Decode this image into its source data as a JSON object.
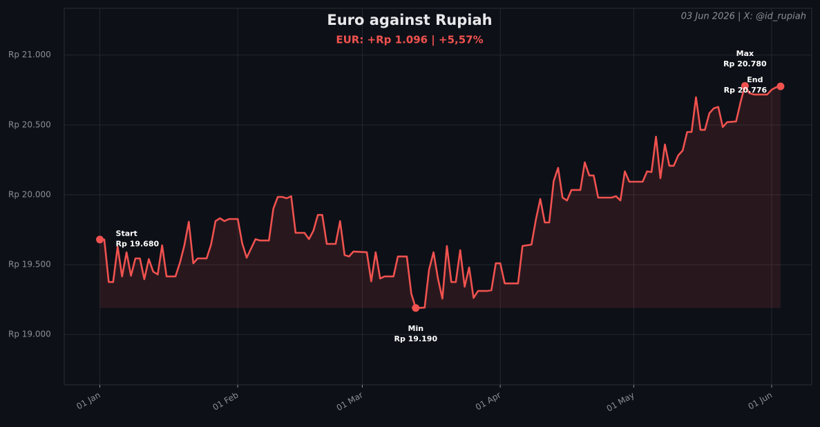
{
  "chart_data": {
    "type": "line",
    "title": "Euro against Rupiah",
    "subtitle": "EUR: +Rp 1.096 | +5,57%",
    "header": "03 Jun 2026 | X: @id_rupiah",
    "color": "#f0524f",
    "grid": true,
    "fill_area": true,
    "x": [
      "2026-01-01",
      "2026-01-02",
      "2026-01-03",
      "2026-01-04",
      "2026-01-05",
      "2026-01-06",
      "2026-01-07",
      "2026-01-08",
      "2026-01-09",
      "2026-01-10",
      "2026-01-11",
      "2026-01-12",
      "2026-01-13",
      "2026-01-14",
      "2026-01-15",
      "2026-01-16",
      "2026-01-18",
      "2026-01-19",
      "2026-01-20",
      "2026-01-21",
      "2026-01-22",
      "2026-01-23",
      "2026-01-25",
      "2026-01-26",
      "2026-01-27",
      "2026-01-28",
      "2026-01-29",
      "2026-01-30",
      "2026-02-01",
      "2026-02-02",
      "2026-02-03",
      "2026-02-05",
      "2026-02-06",
      "2026-02-08",
      "2026-02-09",
      "2026-02-10",
      "2026-02-11",
      "2026-02-12",
      "2026-02-13",
      "2026-02-14",
      "2026-02-16",
      "2026-02-17",
      "2026-02-18",
      "2026-02-19",
      "2026-02-20",
      "2026-02-21",
      "2026-02-23",
      "2026-02-24",
      "2026-02-25",
      "2026-02-26",
      "2026-02-27",
      "2026-03-02",
      "2026-03-03",
      "2026-03-04",
      "2026-03-05",
      "2026-03-06",
      "2026-03-08",
      "2026-03-09",
      "2026-03-11",
      "2026-03-12",
      "2026-03-13",
      "2026-03-15",
      "2026-03-16",
      "2026-03-17",
      "2026-03-18",
      "2026-03-19",
      "2026-03-20",
      "2026-03-21",
      "2026-03-22",
      "2026-03-23",
      "2026-03-24",
      "2026-03-25",
      "2026-03-26",
      "2026-03-27",
      "2026-03-29",
      "2026-03-30",
      "2026-03-31",
      "2026-04-01",
      "2026-04-02",
      "2026-04-05",
      "2026-04-06",
      "2026-04-08",
      "2026-04-09",
      "2026-04-10",
      "2026-04-11",
      "2026-04-12",
      "2026-04-13",
      "2026-04-14",
      "2026-04-15",
      "2026-04-16",
      "2026-04-17",
      "2026-04-19",
      "2026-04-20",
      "2026-04-21",
      "2026-04-22",
      "2026-04-23",
      "2026-04-26",
      "2026-04-27",
      "2026-04-28",
      "2026-04-29",
      "2026-04-30",
      "2026-05-03",
      "2026-05-04",
      "2026-05-05",
      "2026-05-06",
      "2026-05-07",
      "2026-05-08",
      "2026-05-09",
      "2026-05-10",
      "2026-05-11",
      "2026-05-12",
      "2026-05-13",
      "2026-05-14",
      "2026-05-15",
      "2026-05-16",
      "2026-05-17",
      "2026-05-18",
      "2026-05-19",
      "2026-05-20",
      "2026-05-21",
      "2026-05-22",
      "2026-05-24",
      "2026-05-25",
      "2026-05-26",
      "2026-05-27",
      "2026-05-28",
      "2026-05-31",
      "2026-06-01",
      "2026-06-02",
      "2026-06-03"
    ],
    "values": [
      19680,
      19680,
      19376,
      19376,
      19629,
      19416,
      19589,
      19421,
      19545,
      19545,
      19396,
      19540,
      19450,
      19430,
      19639,
      19416,
      19416,
      19515,
      19639,
      19807,
      19510,
      19545,
      19545,
      19644,
      19812,
      19832,
      19812,
      19827,
      19827,
      19653,
      19550,
      19683,
      19673,
      19673,
      19901,
      19985,
      19985,
      19975,
      19990,
      19728,
      19728,
      19683,
      19743,
      19856,
      19856,
      19649,
      19649,
      19812,
      19569,
      19559,
      19594,
      19589,
      19381,
      19589,
      19401,
      19416,
      19416,
      19559,
      19559,
      19292,
      19190,
      19193,
      19465,
      19589,
      19400,
      19257,
      19634,
      19376,
      19376,
      19604,
      19342,
      19480,
      19262,
      19312,
      19312,
      19317,
      19510,
      19510,
      19366,
      19366,
      19634,
      19644,
      19822,
      19970,
      19802,
      19802,
      20099,
      20193,
      19980,
      19960,
      20035,
      20035,
      20233,
      20139,
      20139,
      19980,
      19980,
      19990,
      19960,
      20168,
      20094,
      20094,
      20168,
      20163,
      20416,
      20119,
      20361,
      20208,
      20208,
      20282,
      20317,
      20450,
      20450,
      20698,
      20465,
      20465,
      20584,
      20619,
      20629,
      20485,
      20520,
      20525,
      20663,
      20780,
      20728,
      20718,
      20718,
      20752,
      20770,
      20776
    ],
    "xlim": [
      "2025-12-24",
      "2026-06-10"
    ],
    "xticks": [
      {
        "value": "2026-01-01",
        "label": "01 Jan"
      },
      {
        "value": "2026-02-01",
        "label": "01 Feb"
      },
      {
        "value": "2026-03-01",
        "label": "01 Mar"
      },
      {
        "value": "2026-04-01",
        "label": "01 Apr"
      },
      {
        "value": "2026-05-01",
        "label": "01 May"
      },
      {
        "value": "2026-06-01",
        "label": "01 Jun"
      }
    ],
    "ylim": [
      18640,
      21335
    ],
    "yticks": [
      {
        "value": 19000,
        "label": "Rp 19.000"
      },
      {
        "value": 19500,
        "label": "Rp 19.500"
      },
      {
        "value": 20000,
        "label": "Rp 20.000"
      },
      {
        "value": 20500,
        "label": "Rp 20.500"
      },
      {
        "value": 21000,
        "label": "Rp 21.000"
      }
    ],
    "annotations": [
      {
        "name": "Start",
        "label": "Rp 19.680",
        "x": "2026-01-01",
        "value": 19680
      },
      {
        "name": "Min",
        "label": "Rp 19.190",
        "x": "2026-03-13",
        "value": 19190
      },
      {
        "name": "Max",
        "label": "Rp 20.780",
        "x": "2026-05-26",
        "value": 20780
      },
      {
        "name": "End",
        "label": "Rp 20.776",
        "x": "2026-06-03",
        "value": 20776
      }
    ]
  }
}
